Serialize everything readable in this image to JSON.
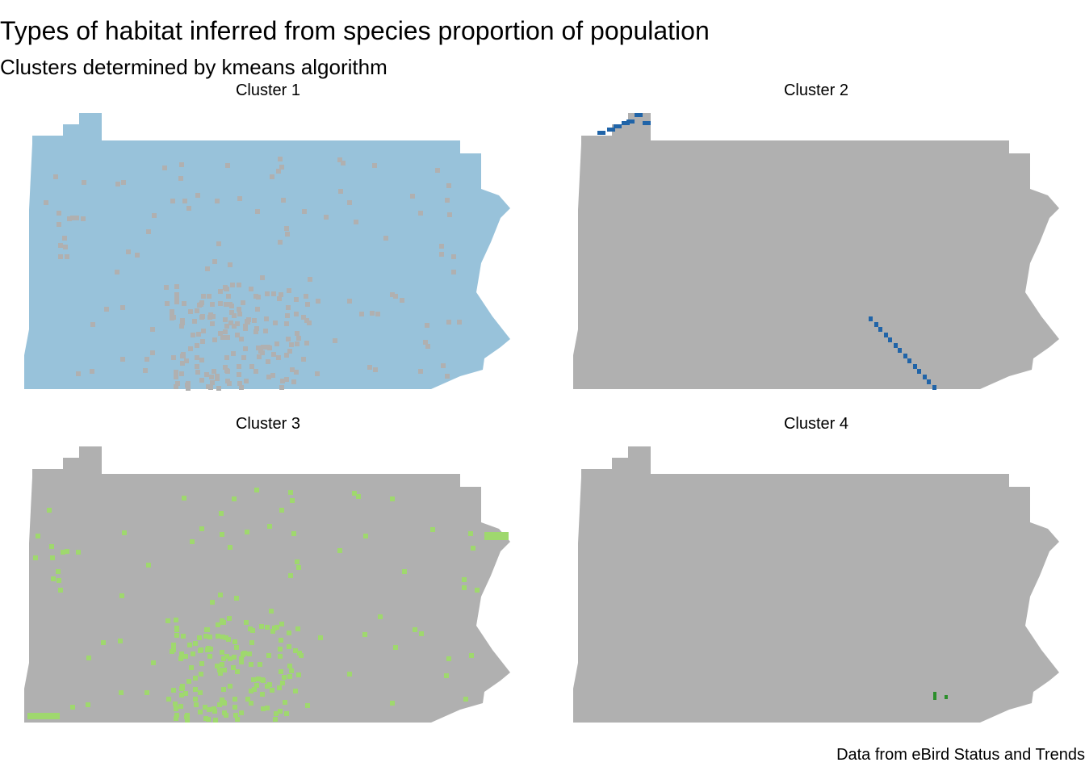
{
  "title": "Types of habitat inferred from species proportion of population",
  "subtitle": "Clusters determined by kmeans algorithm",
  "caption": "Data from eBird Status and Trends",
  "colors": {
    "background_state": "#b0b0b0",
    "cluster_1": "#98c2da",
    "cluster_2": "#2064a8",
    "cluster_3": "#9fd86e",
    "cluster_4": "#2b8f2b"
  },
  "panels": [
    {
      "label": "Cluster  1",
      "cluster": 1
    },
    {
      "label": "Cluster  2",
      "cluster": 2
    },
    {
      "label": "Cluster  3",
      "cluster": 3
    },
    {
      "label": "Cluster  4",
      "cluster": 4
    }
  ]
}
